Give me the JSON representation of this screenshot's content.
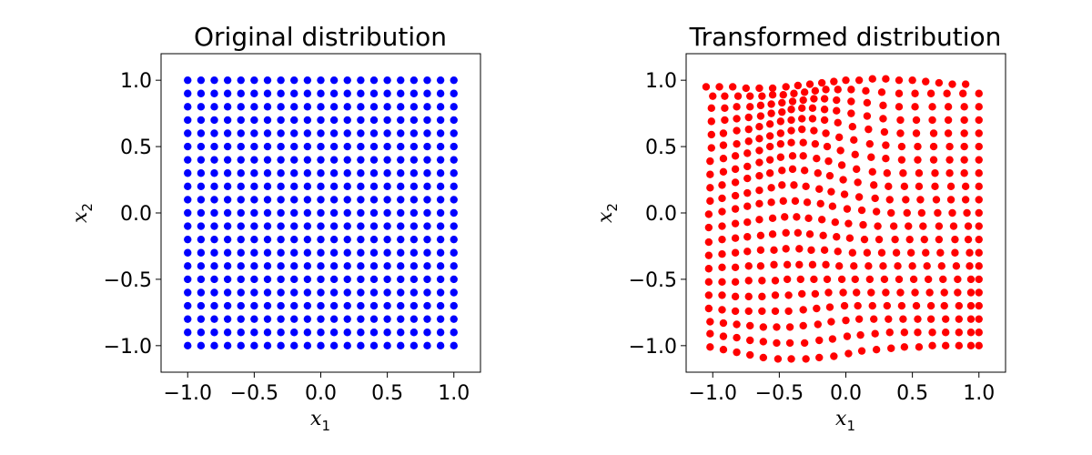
{
  "chart_data": [
    {
      "type": "scatter",
      "title": "Original distribution",
      "xlabel": "x",
      "xlabel_sub": "1",
      "ylabel": "x",
      "ylabel_sub": "2",
      "xlim": [
        -1.2,
        1.2
      ],
      "ylim": [
        -1.2,
        1.2
      ],
      "xticks": [
        -1.0,
        -0.5,
        0.0,
        0.5,
        1.0
      ],
      "yticks": [
        -1.0,
        -0.5,
        0.0,
        0.5,
        1.0
      ],
      "xtick_labels": [
        "−1.0",
        "−0.5",
        "0.0",
        "0.5",
        "1.0"
      ],
      "ytick_labels": [
        "−1.0",
        "−0.5",
        "0.0",
        "0.5",
        "1.0"
      ],
      "color": "#0000ff",
      "grid": false,
      "grid_values": {
        "x": [
          -1.0,
          -0.9,
          -0.8,
          -0.7,
          -0.6,
          -0.5,
          -0.4,
          -0.3,
          -0.2,
          -0.1,
          0.0,
          0.1,
          0.2,
          0.3,
          0.4,
          0.5,
          0.6,
          0.7,
          0.8,
          0.9,
          1.0
        ],
        "y": [
          -1.0,
          -0.9,
          -0.8,
          -0.7,
          -0.6,
          -0.5,
          -0.4,
          -0.3,
          -0.2,
          -0.1,
          0.0,
          0.1,
          0.2,
          0.3,
          0.4,
          0.5,
          0.6,
          0.7,
          0.8,
          0.9,
          1.0
        ]
      }
    },
    {
      "type": "scatter",
      "title": "Transformed distribution",
      "xlabel": "x",
      "xlabel_sub": "1",
      "ylabel": "x",
      "ylabel_sub": "2",
      "xlim": [
        -1.2,
        1.2
      ],
      "ylim": [
        -1.2,
        1.2
      ],
      "xticks": [
        -1.0,
        -0.5,
        0.0,
        0.5,
        1.0
      ],
      "yticks": [
        -1.0,
        -0.5,
        0.0,
        0.5,
        1.0
      ],
      "xtick_labels": [
        "−1.0",
        "−0.5",
        "0.0",
        "0.5",
        "1.0"
      ],
      "ytick_labels": [
        "−1.0",
        "−0.5",
        "0.0",
        "0.5",
        "1.0"
      ],
      "color": "#ff0000",
      "grid": false,
      "rows": [
        {
          "y_start": -1.02,
          "x": [
            -1.02,
            -0.92,
            -0.82,
            -0.72,
            -0.62,
            -0.51,
            -0.41,
            -0.3,
            -0.2,
            -0.09,
            0.02,
            0.12,
            0.23,
            0.34,
            0.44,
            0.55,
            0.65,
            0.75,
            0.85,
            0.94,
            1.0
          ],
          "y": [
            -1.01,
            -1.03,
            -1.05,
            -1.07,
            -1.09,
            -1.1,
            -1.1,
            -1.1,
            -1.09,
            -1.08,
            -1.06,
            -1.04,
            -1.03,
            -1.02,
            -1.01,
            -1.01,
            -1.0,
            -1.0,
            -1.0,
            -1.0,
            -1.0
          ]
        },
        {
          "x": [
            -1.02,
            -0.92,
            -0.82,
            -0.72,
            -0.62,
            -0.52,
            -0.42,
            -0.31,
            -0.2,
            -0.1,
            0.01,
            0.11,
            0.22,
            0.33,
            0.44,
            0.54,
            0.65,
            0.75,
            0.85,
            0.94,
            1.0
          ],
          "y": [
            -0.91,
            -0.93,
            -0.94,
            -0.96,
            -0.97,
            -0.98,
            -0.98,
            -0.98,
            -0.96,
            -0.95,
            -0.93,
            -0.92,
            -0.91,
            -0.9,
            -0.9,
            -0.9,
            -0.9,
            -0.9,
            -0.9,
            -0.9,
            -0.9
          ]
        },
        {
          "x": [
            -1.02,
            -0.92,
            -0.82,
            -0.72,
            -0.62,
            -0.52,
            -0.42,
            -0.32,
            -0.21,
            -0.11,
            0.0,
            0.1,
            0.21,
            0.32,
            0.43,
            0.54,
            0.64,
            0.75,
            0.85,
            0.94,
            1.0
          ],
          "y": [
            -0.82,
            -0.83,
            -0.84,
            -0.85,
            -0.86,
            -0.86,
            -0.86,
            -0.85,
            -0.84,
            -0.82,
            -0.81,
            -0.8,
            -0.8,
            -0.8,
            -0.8,
            -0.8,
            -0.8,
            -0.8,
            -0.8,
            -0.8,
            -0.8
          ]
        },
        {
          "x": [
            -1.03,
            -0.93,
            -0.83,
            -0.73,
            -0.63,
            -0.53,
            -0.43,
            -0.32,
            -0.22,
            -0.12,
            -0.01,
            0.09,
            0.2,
            0.31,
            0.42,
            0.53,
            0.64,
            0.74,
            0.85,
            0.94,
            1.0
          ],
          "y": [
            -0.72,
            -0.73,
            -0.74,
            -0.74,
            -0.74,
            -0.74,
            -0.74,
            -0.73,
            -0.72,
            -0.71,
            -0.7,
            -0.7,
            -0.7,
            -0.7,
            -0.7,
            -0.7,
            -0.7,
            -0.7,
            -0.7,
            -0.7,
            -0.7
          ]
        },
        {
          "x": [
            -1.03,
            -0.93,
            -0.83,
            -0.73,
            -0.63,
            -0.53,
            -0.43,
            -0.33,
            -0.23,
            -0.13,
            -0.02,
            0.08,
            0.19,
            0.3,
            0.41,
            0.52,
            0.63,
            0.74,
            0.84,
            0.94,
            1.0
          ],
          "y": [
            -0.62,
            -0.62,
            -0.63,
            -0.63,
            -0.63,
            -0.62,
            -0.62,
            -0.61,
            -0.61,
            -0.6,
            -0.6,
            -0.6,
            -0.6,
            -0.6,
            -0.6,
            -0.6,
            -0.6,
            -0.6,
            -0.6,
            -0.6,
            -0.6
          ]
        },
        {
          "x": [
            -1.03,
            -0.93,
            -0.83,
            -0.73,
            -0.63,
            -0.53,
            -0.44,
            -0.34,
            -0.24,
            -0.14,
            -0.03,
            0.07,
            0.18,
            0.29,
            0.4,
            0.51,
            0.62,
            0.73,
            0.84,
            0.94,
            1.0
          ],
          "y": [
            -0.52,
            -0.52,
            -0.52,
            -0.51,
            -0.51,
            -0.51,
            -0.5,
            -0.5,
            -0.5,
            -0.5,
            -0.5,
            -0.5,
            -0.5,
            -0.5,
            -0.5,
            -0.5,
            -0.5,
            -0.5,
            -0.5,
            -0.5,
            -0.5
          ]
        },
        {
          "x": [
            -1.03,
            -0.93,
            -0.83,
            -0.73,
            -0.64,
            -0.54,
            -0.44,
            -0.35,
            -0.25,
            -0.15,
            -0.05,
            0.06,
            0.17,
            0.28,
            0.39,
            0.5,
            0.61,
            0.72,
            0.83,
            0.93,
            1.0
          ],
          "y": [
            -0.42,
            -0.41,
            -0.41,
            -0.4,
            -0.4,
            -0.39,
            -0.39,
            -0.39,
            -0.39,
            -0.39,
            -0.4,
            -0.4,
            -0.4,
            -0.4,
            -0.4,
            -0.4,
            -0.4,
            -0.4,
            -0.4,
            -0.4,
            -0.4
          ]
        },
        {
          "x": [
            -1.03,
            -0.93,
            -0.83,
            -0.74,
            -0.64,
            -0.54,
            -0.45,
            -0.35,
            -0.26,
            -0.16,
            -0.06,
            0.05,
            0.16,
            0.27,
            0.38,
            0.49,
            0.6,
            0.71,
            0.82,
            0.93,
            1.0
          ],
          "y": [
            -0.32,
            -0.31,
            -0.3,
            -0.29,
            -0.28,
            -0.28,
            -0.27,
            -0.27,
            -0.28,
            -0.28,
            -0.29,
            -0.3,
            -0.3,
            -0.3,
            -0.3,
            -0.3,
            -0.3,
            -0.3,
            -0.3,
            -0.3,
            -0.3
          ]
        },
        {
          "x": [
            -1.03,
            -0.93,
            -0.83,
            -0.74,
            -0.64,
            -0.55,
            -0.45,
            -0.36,
            -0.27,
            -0.17,
            -0.07,
            0.03,
            0.14,
            0.25,
            0.37,
            0.48,
            0.59,
            0.7,
            0.82,
            0.92,
            1.0
          ],
          "y": [
            -0.22,
            -0.2,
            -0.19,
            -0.18,
            -0.17,
            -0.16,
            -0.15,
            -0.15,
            -0.16,
            -0.17,
            -0.18,
            -0.19,
            -0.2,
            -0.2,
            -0.2,
            -0.2,
            -0.2,
            -0.2,
            -0.2,
            -0.2,
            -0.2
          ]
        },
        {
          "x": [
            -1.03,
            -0.93,
            -0.83,
            -0.74,
            -0.65,
            -0.55,
            -0.46,
            -0.37,
            -0.28,
            -0.18,
            -0.08,
            0.02,
            0.13,
            0.24,
            0.36,
            0.47,
            0.58,
            0.7,
            0.81,
            0.92,
            1.0
          ],
          "y": [
            -0.11,
            -0.1,
            -0.08,
            -0.07,
            -0.05,
            -0.04,
            -0.03,
            -0.03,
            -0.04,
            -0.05,
            -0.07,
            -0.08,
            -0.09,
            -0.1,
            -0.1,
            -0.1,
            -0.1,
            -0.1,
            -0.1,
            -0.1,
            -0.1
          ]
        },
        {
          "x": [
            -1.03,
            -0.93,
            -0.83,
            -0.74,
            -0.65,
            -0.56,
            -0.47,
            -0.38,
            -0.29,
            -0.19,
            -0.1,
            0.01,
            0.12,
            0.23,
            0.34,
            0.46,
            0.57,
            0.69,
            0.8,
            0.91,
            1.0
          ],
          "y": [
            -0.01,
            0.01,
            0.03,
            0.05,
            0.07,
            0.08,
            0.09,
            0.09,
            0.08,
            0.07,
            0.05,
            0.03,
            0.02,
            0.01,
            0.0,
            0.0,
            0.0,
            0.0,
            0.0,
            0.0,
            0.0
          ]
        },
        {
          "x": [
            -1.02,
            -0.93,
            -0.83,
            -0.74,
            -0.65,
            -0.56,
            -0.48,
            -0.39,
            -0.3,
            -0.2,
            -0.11,
            -0.01,
            0.1,
            0.22,
            0.33,
            0.45,
            0.56,
            0.68,
            0.79,
            0.9,
            1.0
          ],
          "y": [
            0.09,
            0.11,
            0.13,
            0.15,
            0.17,
            0.19,
            0.21,
            0.21,
            0.2,
            0.18,
            0.16,
            0.14,
            0.12,
            0.11,
            0.1,
            0.1,
            0.1,
            0.1,
            0.1,
            0.1,
            0.1
          ]
        },
        {
          "x": [
            -1.02,
            -0.93,
            -0.83,
            -0.74,
            -0.65,
            -0.57,
            -0.48,
            -0.4,
            -0.31,
            -0.21,
            -0.12,
            -0.02,
            0.09,
            0.21,
            0.32,
            0.44,
            0.55,
            0.67,
            0.79,
            0.9,
            1.0
          ],
          "y": [
            0.19,
            0.21,
            0.23,
            0.26,
            0.28,
            0.3,
            0.32,
            0.33,
            0.32,
            0.3,
            0.28,
            0.25,
            0.23,
            0.21,
            0.2,
            0.2,
            0.2,
            0.2,
            0.2,
            0.2,
            0.2
          ]
        },
        {
          "x": [
            -1.02,
            -0.92,
            -0.83,
            -0.74,
            -0.65,
            -0.57,
            -0.49,
            -0.4,
            -0.32,
            -0.22,
            -0.13,
            -0.03,
            0.08,
            0.2,
            0.31,
            0.43,
            0.55,
            0.67,
            0.78,
            0.89,
            1.0
          ],
          "y": [
            0.29,
            0.31,
            0.33,
            0.35,
            0.38,
            0.4,
            0.42,
            0.43,
            0.43,
            0.41,
            0.39,
            0.36,
            0.33,
            0.31,
            0.3,
            0.3,
            0.3,
            0.3,
            0.3,
            0.3,
            0.3
          ]
        },
        {
          "x": [
            -1.02,
            -0.92,
            -0.83,
            -0.74,
            -0.65,
            -0.57,
            -0.49,
            -0.41,
            -0.32,
            -0.23,
            -0.14,
            -0.04,
            0.07,
            0.19,
            0.3,
            0.42,
            0.54,
            0.66,
            0.78,
            0.89,
            1.0
          ],
          "y": [
            0.39,
            0.41,
            0.43,
            0.45,
            0.47,
            0.5,
            0.52,
            0.53,
            0.53,
            0.52,
            0.5,
            0.47,
            0.44,
            0.42,
            0.41,
            0.4,
            0.4,
            0.4,
            0.4,
            0.4,
            0.4
          ]
        },
        {
          "x": [
            -1.01,
            -0.92,
            -0.82,
            -0.73,
            -0.65,
            -0.57,
            -0.49,
            -0.41,
            -0.33,
            -0.24,
            -0.15,
            -0.05,
            0.06,
            0.18,
            0.3,
            0.42,
            0.54,
            0.66,
            0.78,
            0.89,
            1.0
          ],
          "y": [
            0.49,
            0.51,
            0.52,
            0.54,
            0.56,
            0.58,
            0.6,
            0.62,
            0.63,
            0.62,
            0.6,
            0.57,
            0.55,
            0.52,
            0.51,
            0.5,
            0.5,
            0.5,
            0.5,
            0.5,
            0.5
          ]
        },
        {
          "x": [
            -1.01,
            -0.92,
            -0.82,
            -0.73,
            -0.65,
            -0.57,
            -0.49,
            -0.41,
            -0.33,
            -0.25,
            -0.16,
            -0.06,
            0.05,
            0.17,
            0.29,
            0.41,
            0.53,
            0.66,
            0.77,
            0.89,
            1.0
          ],
          "y": [
            0.59,
            0.6,
            0.62,
            0.63,
            0.65,
            0.67,
            0.69,
            0.7,
            0.71,
            0.71,
            0.7,
            0.68,
            0.65,
            0.63,
            0.61,
            0.6,
            0.6,
            0.6,
            0.6,
            0.6,
            0.6
          ]
        },
        {
          "x": [
            -1.01,
            -0.91,
            -0.82,
            -0.73,
            -0.64,
            -0.56,
            -0.48,
            -0.41,
            -0.33,
            -0.25,
            -0.16,
            -0.07,
            0.04,
            0.16,
            0.28,
            0.41,
            0.53,
            0.65,
            0.77,
            0.89,
            1.0
          ],
          "y": [
            0.69,
            0.7,
            0.71,
            0.72,
            0.73,
            0.75,
            0.76,
            0.78,
            0.79,
            0.79,
            0.78,
            0.77,
            0.75,
            0.73,
            0.71,
            0.7,
            0.7,
            0.7,
            0.7,
            0.7,
            0.7
          ]
        },
        {
          "x": [
            -1.01,
            -0.91,
            -0.82,
            -0.72,
            -0.64,
            -0.56,
            -0.48,
            -0.4,
            -0.32,
            -0.24,
            -0.16,
            -0.07,
            0.04,
            0.16,
            0.28,
            0.4,
            0.52,
            0.65,
            0.77,
            0.89,
            1.0
          ],
          "y": [
            0.79,
            0.79,
            0.8,
            0.8,
            0.81,
            0.82,
            0.83,
            0.84,
            0.85,
            0.86,
            0.86,
            0.85,
            0.84,
            0.83,
            0.81,
            0.8,
            0.8,
            0.8,
            0.8,
            0.8,
            0.8
          ]
        },
        {
          "x": [
            -1.0,
            -0.91,
            -0.81,
            -0.72,
            -0.63,
            -0.55,
            -0.47,
            -0.39,
            -0.31,
            -0.23,
            -0.15,
            -0.06,
            0.04,
            0.15,
            0.27,
            0.4,
            0.52,
            0.64,
            0.76,
            0.88,
            1.0
          ],
          "y": [
            0.88,
            0.88,
            0.88,
            0.88,
            0.88,
            0.89,
            0.89,
            0.9,
            0.91,
            0.92,
            0.93,
            0.93,
            0.93,
            0.92,
            0.91,
            0.9,
            0.9,
            0.9,
            0.9,
            0.9,
            0.9
          ]
        },
        {
          "x": [
            -1.05,
            -0.95,
            -0.85,
            -0.75,
            -0.65,
            -0.55,
            -0.45,
            -0.36,
            -0.27,
            -0.18,
            -0.09,
            0.0,
            0.1,
            0.2,
            0.3,
            0.4,
            0.5,
            0.6,
            0.7,
            0.8,
            0.9
          ],
          "y": [
            0.95,
            0.95,
            0.95,
            0.94,
            0.94,
            0.94,
            0.95,
            0.96,
            0.97,
            0.98,
            0.99,
            1.0,
            1.0,
            1.01,
            1.01,
            1.0,
            1.0,
            0.99,
            0.98,
            0.97,
            0.97
          ]
        }
      ]
    }
  ]
}
